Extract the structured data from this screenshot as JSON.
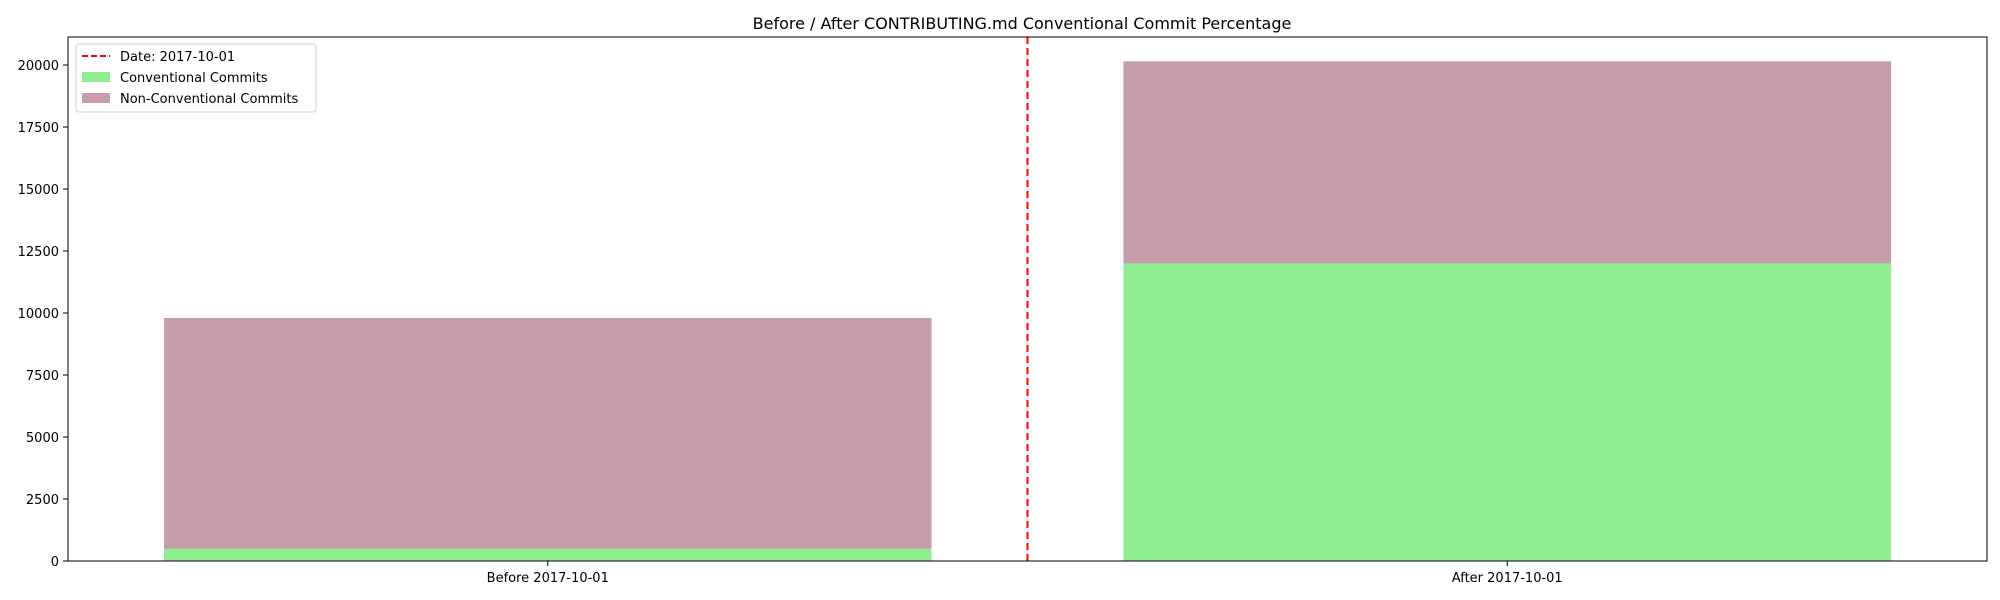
{
  "chart_data": {
    "type": "bar",
    "stacked": true,
    "title": "Before / After CONTRIBUTING.md Conventional Commit Percentage",
    "xlabel": "",
    "ylabel": "",
    "categories": [
      "Before 2017-10-01",
      "After 2017-10-01"
    ],
    "series": [
      {
        "name": "Conventional Commits",
        "values": [
          500,
          12000
        ],
        "color": "#90ee90"
      },
      {
        "name": "Non-Conventional Commits",
        "values": [
          9300,
          8150
        ],
        "color": "#c79da9"
      }
    ],
    "ylim": [
      0,
      21130
    ],
    "yticks": [
      0,
      2500,
      5000,
      7500,
      10000,
      12500,
      15000,
      17500,
      20000
    ],
    "marker_line": {
      "label": "Date: 2017-10-01",
      "color": "#ff0000",
      "style": "dashed",
      "position": "between categories"
    },
    "legend_position": "top-left",
    "grid": false
  }
}
